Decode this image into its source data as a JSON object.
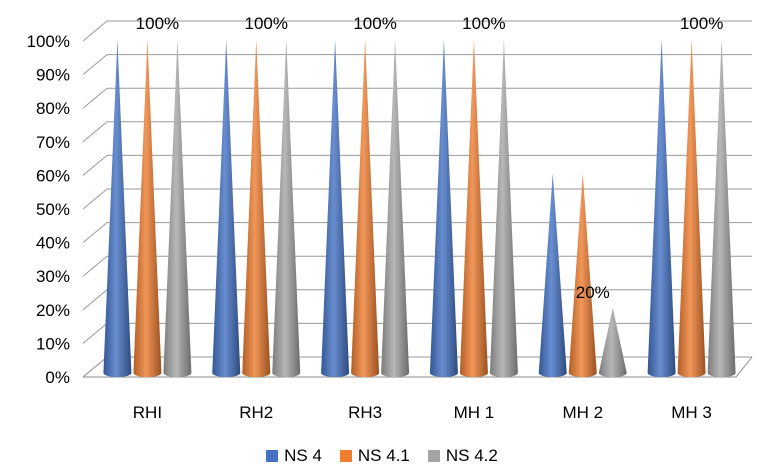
{
  "chart_data": {
    "type": "bar",
    "style": "3d-cone",
    "categories": [
      "RHI",
      "RH2",
      "RH3",
      "MH 1",
      "MH 2",
      "MH 3"
    ],
    "series": [
      {
        "name": "NS 4",
        "color": "#4472C4",
        "values": [
          100,
          100,
          100,
          100,
          60,
          100
        ]
      },
      {
        "name": "NS 4.1",
        "color": "#ED7D31",
        "values": [
          100,
          100,
          100,
          100,
          60,
          100
        ]
      },
      {
        "name": "NS 4.2",
        "color": "#A5A5A5",
        "values": [
          100,
          100,
          100,
          100,
          20,
          100
        ]
      }
    ],
    "y_ticks": [
      "0%",
      "10%",
      "20%",
      "30%",
      "40%",
      "50%",
      "60%",
      "70%",
      "80%",
      "90%",
      "100%"
    ],
    "ylim": [
      0,
      100
    ],
    "grid": true,
    "legend_position": "bottom",
    "data_labels": [
      {
        "category": "RHI",
        "text": "100%"
      },
      {
        "category": "RH2",
        "text": "100%"
      },
      {
        "category": "RH3",
        "text": "100%"
      },
      {
        "category": "MH 1",
        "text": "100%"
      },
      {
        "category": "MH 2",
        "text": "20%"
      },
      {
        "category": "MH 3",
        "text": "100%"
      }
    ]
  }
}
